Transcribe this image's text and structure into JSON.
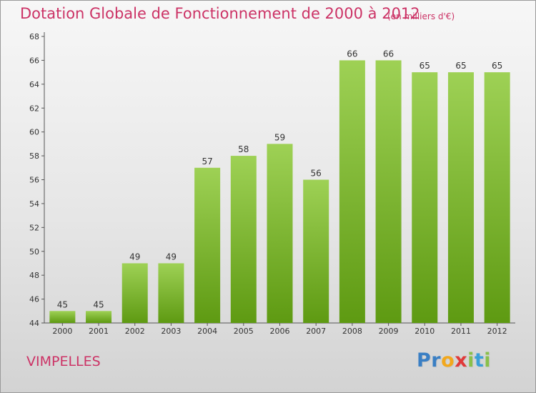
{
  "chart_data": {
    "type": "bar",
    "title": "Dotation Globale de Fonctionnement de 2000 à 2012",
    "subtitle": "(en milliers d'€)",
    "categories": [
      "2000",
      "2001",
      "2002",
      "2003",
      "2004",
      "2005",
      "2006",
      "2007",
      "2008",
      "2009",
      "2010",
      "2011",
      "2012"
    ],
    "values": [
      45,
      45,
      49,
      49,
      57,
      58,
      59,
      56,
      66,
      66,
      65,
      65,
      65
    ],
    "ylim": [
      44,
      68
    ],
    "yticks": [
      44,
      46,
      48,
      50,
      52,
      54,
      56,
      58,
      60,
      62,
      64,
      66,
      68
    ],
    "grid": false,
    "bar_color": "#7ab82e"
  },
  "footer": {
    "commune": "VIMPELLES",
    "logo_letters": [
      {
        "ch": "P",
        "color": "#3a7fc4"
      },
      {
        "ch": "r",
        "color": "#3a7fc4"
      },
      {
        "ch": "o",
        "color": "#f2a81d"
      },
      {
        "ch": "x",
        "color": "#e03a3a"
      },
      {
        "ch": "i",
        "color": "#8ac04a"
      },
      {
        "ch": "t",
        "color": "#3a9fd8"
      },
      {
        "ch": "i",
        "color": "#8ac04a"
      }
    ]
  }
}
